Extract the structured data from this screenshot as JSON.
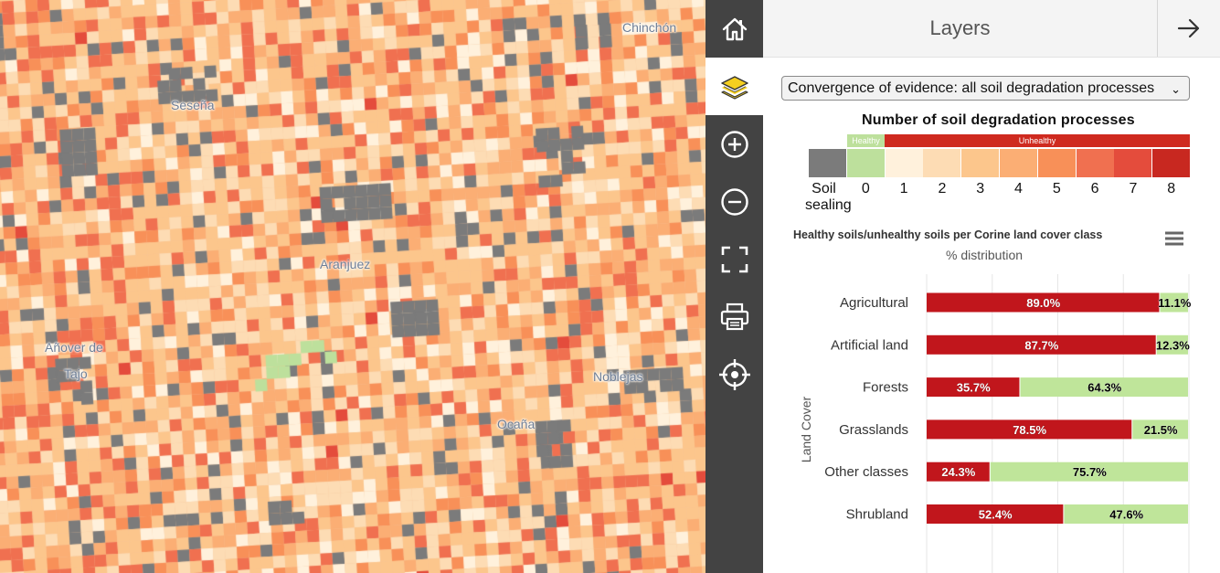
{
  "map": {
    "places": [
      "Chinchón",
      "Seseña",
      "Aranjuez",
      "Añover de",
      "Tajo",
      "Noblejas",
      "Ocaña"
    ],
    "colors": {
      "sealing": "#7b7b7b",
      "healthy": "#bde09c",
      "classes": [
        "#fff1dc",
        "#fddcb4",
        "#fcc68c",
        "#fbae74",
        "#f89058",
        "#f07050",
        "#e44c3c",
        "#c82820"
      ]
    }
  },
  "toolbar": {
    "items": [
      "home-icon",
      "layers-icon",
      "zoom-in-icon",
      "zoom-out-icon",
      "fullscreen-icon",
      "print-icon",
      "locate-icon"
    ],
    "active": "layers-icon"
  },
  "panel": {
    "title": "Layers",
    "layer_select": "Convergence of evidence: all soil degradation processes"
  },
  "legend": {
    "title": "Number of soil degradation processes",
    "healthy_label": "Healthy",
    "unhealthy_label": "Unhealthy",
    "sealing_label": [
      "Soil",
      "sealing"
    ],
    "classes": [
      "0",
      "1",
      "2",
      "3",
      "4",
      "5",
      "6",
      "7",
      "8"
    ]
  },
  "chart_data": {
    "type": "bar",
    "stacked": true,
    "orientation": "horizontal",
    "title": "Healthy soils/unhealthy soils per Corine land cover class",
    "subtitle": "% distribution",
    "ylabel": "Land Cover",
    "categories": [
      "Agricultural",
      "Artificial land",
      "Forests",
      "Grasslands",
      "Other classes",
      "Shrubland"
    ],
    "series": [
      {
        "color": "#c1161c",
        "values": [
          89.0,
          87.7,
          35.7,
          78.5,
          24.3,
          52.4
        ]
      },
      {
        "color": "#bfe59a",
        "values": [
          11.1,
          12.3,
          64.3,
          21.5,
          75.7,
          47.6
        ]
      }
    ],
    "xlim": [
      0,
      100
    ],
    "grid": true
  }
}
